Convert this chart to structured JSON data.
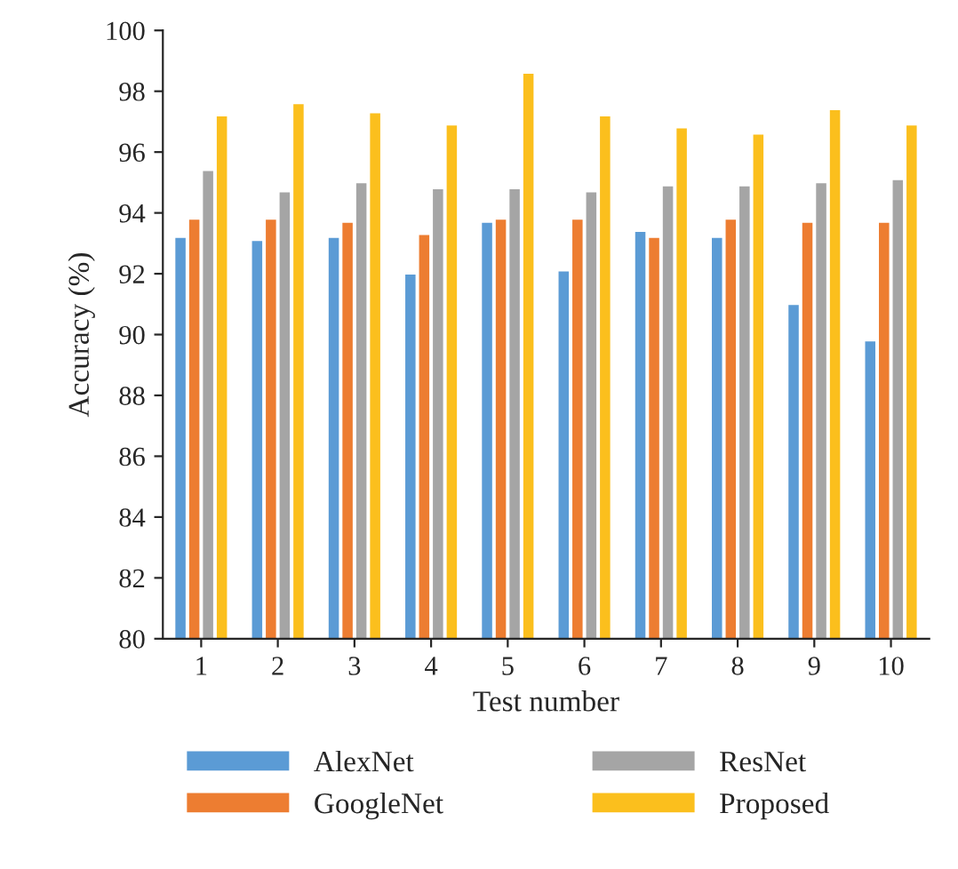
{
  "chart_data": {
    "type": "bar",
    "xlabel": "Test number",
    "ylabel": "Accuracy (%)",
    "categories": [
      "1",
      "2",
      "3",
      "4",
      "5",
      "6",
      "7",
      "8",
      "9",
      "10"
    ],
    "series": [
      {
        "name": "AlexNet",
        "color": "#5b9bd5",
        "values": [
          93.2,
          93.1,
          93.2,
          92.0,
          93.7,
          92.1,
          93.4,
          93.2,
          91.0,
          89.8
        ]
      },
      {
        "name": "GoogleNet",
        "color": "#ed7d31",
        "values": [
          93.8,
          93.8,
          93.7,
          93.3,
          93.8,
          93.8,
          93.2,
          93.8,
          93.7,
          93.7
        ]
      },
      {
        "name": "ResNet",
        "color": "#a5a5a5",
        "values": [
          95.4,
          94.7,
          95.0,
          94.8,
          94.8,
          94.7,
          94.9,
          94.9,
          95.0,
          95.1
        ]
      },
      {
        "name": "Proposed",
        "color": "#fbbf1d",
        "values": [
          97.2,
          97.6,
          97.3,
          96.9,
          98.6,
          97.2,
          96.8,
          96.6,
          97.4,
          96.9
        ]
      }
    ],
    "ylim": [
      80,
      100
    ],
    "yticks": [
      80,
      82,
      84,
      86,
      88,
      90,
      92,
      94,
      96,
      98,
      100
    ],
    "grid": false,
    "legend": "bottom"
  }
}
